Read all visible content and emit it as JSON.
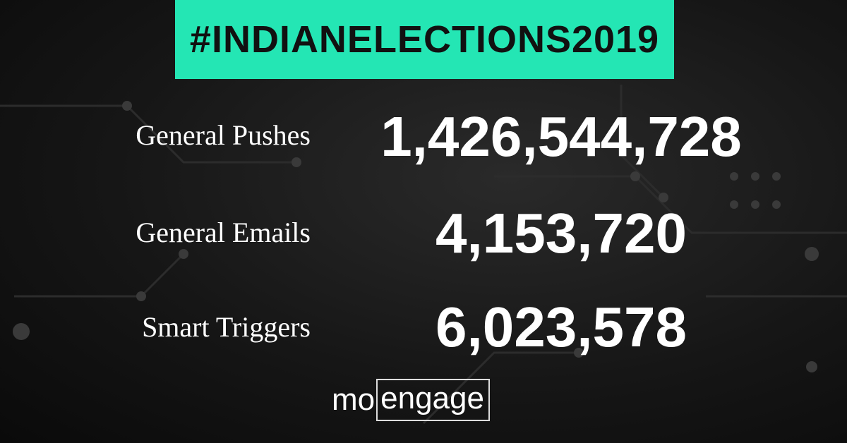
{
  "header": {
    "title": "#INDIANELECTIONS2019"
  },
  "stats": [
    {
      "label": "General Pushes",
      "value": "1,426,544,728"
    },
    {
      "label": "General Emails",
      "value": "4,153,720"
    },
    {
      "label": "Smart Triggers",
      "value": "6,023,578"
    }
  ],
  "logo": [
    "mo",
    "engage"
  ]
}
